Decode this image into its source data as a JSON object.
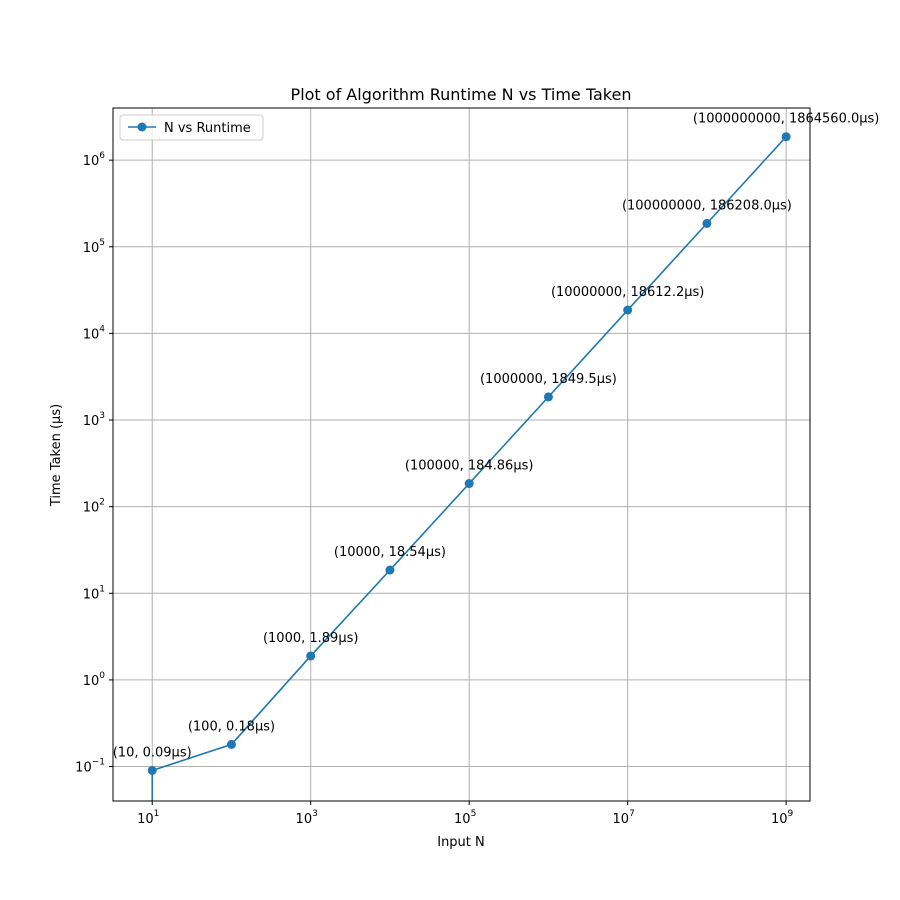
{
  "chart_data": {
    "type": "line",
    "title": "Plot of Algorithm Runtime N vs Time Taken",
    "xlabel": "Input N",
    "ylabel": "Time Taken (µs)",
    "xscale": "log",
    "yscale": "log",
    "xlim": [
      3.2,
      2000000000
    ],
    "ylim": [
      0.04,
      4000000
    ],
    "grid": true,
    "legend_position": "top-left",
    "x_ticks": [
      {
        "base": "10",
        "exp": "1",
        "value": 10
      },
      {
        "base": "10",
        "exp": "3",
        "value": 1000
      },
      {
        "base": "10",
        "exp": "5",
        "value": 100000
      },
      {
        "base": "10",
        "exp": "7",
        "value": 10000000
      },
      {
        "base": "10",
        "exp": "9",
        "value": 1000000000
      }
    ],
    "y_ticks": [
      {
        "base": "10",
        "exp": "−1",
        "value": 0.1
      },
      {
        "base": "10",
        "exp": "0",
        "value": 1
      },
      {
        "base": "10",
        "exp": "1",
        "value": 10
      },
      {
        "base": "10",
        "exp": "2",
        "value": 100
      },
      {
        "base": "10",
        "exp": "3",
        "value": 1000
      },
      {
        "base": "10",
        "exp": "4",
        "value": 10000
      },
      {
        "base": "10",
        "exp": "5",
        "value": 100000
      },
      {
        "base": "10",
        "exp": "6",
        "value": 1000000
      }
    ],
    "series": [
      {
        "name": "N vs Runtime",
        "color": "#1f77b4",
        "points": [
          {
            "x": 10,
            "y": 0.09,
            "label": "(10, 0.09µs)"
          },
          {
            "x": 100,
            "y": 0.18,
            "label": "(100, 0.18µs)"
          },
          {
            "x": 1000,
            "y": 1.89,
            "label": "(1000, 1.89µs)"
          },
          {
            "x": 10000,
            "y": 18.54,
            "label": "(10000, 18.54µs)"
          },
          {
            "x": 100000,
            "y": 184.86,
            "label": "(100000, 184.86µs)"
          },
          {
            "x": 1000000,
            "y": 1849.5,
            "label": "(1000000, 1849.5µs)"
          },
          {
            "x": 10000000,
            "y": 18612.2,
            "label": "(10000000, 18612.2µs)"
          },
          {
            "x": 100000000,
            "y": 186208.0,
            "label": "(100000000, 186208.0µs)"
          },
          {
            "x": 1000000000,
            "y": 1864560.0,
            "label": "(1000000000, 1864560.0µs)"
          }
        ]
      }
    ]
  }
}
